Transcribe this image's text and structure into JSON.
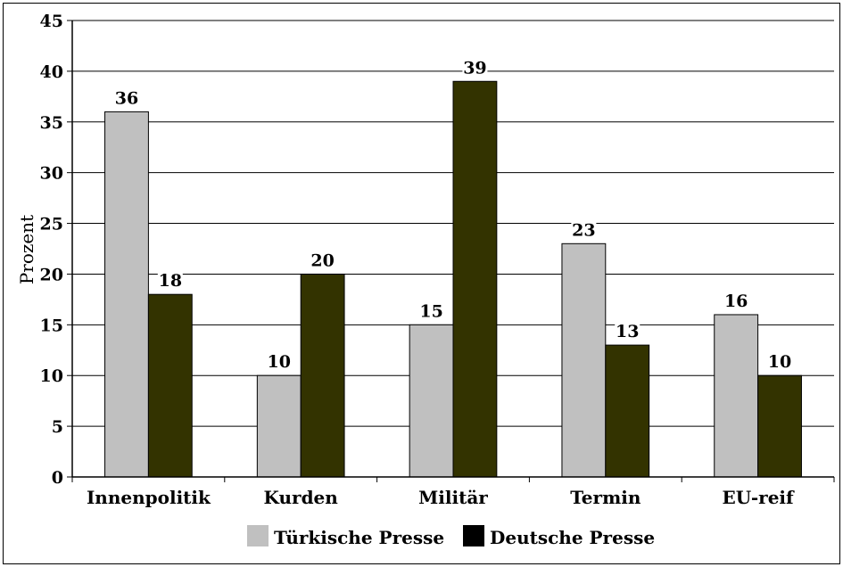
{
  "chart_data": {
    "type": "bar",
    "categories": [
      "Innenpolitik",
      "Kurden",
      "Militär",
      "Termin",
      "EU-reif"
    ],
    "series": [
      {
        "name": "Türkische Presse",
        "values": [
          36,
          10,
          15,
          23,
          16
        ],
        "color": "#c0c0c0"
      },
      {
        "name": "Deutsche Presse",
        "values": [
          18,
          20,
          39,
          13,
          10
        ],
        "color": "#333300"
      }
    ],
    "ylabel": "Prozent",
    "xlabel": "",
    "ylim": [
      0,
      45
    ],
    "yticks": [
      "0",
      "5",
      "10",
      "15",
      "20",
      "25",
      "30",
      "35",
      "40",
      "45"
    ],
    "grid": true,
    "legend_position": "bottom",
    "data_labels": true
  }
}
